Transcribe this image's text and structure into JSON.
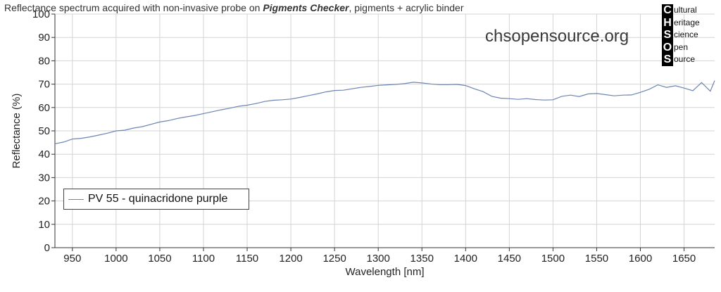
{
  "title": {
    "prefix": "Reflectance spectrum acquired with non-invasive probe on ",
    "emphasis": "Pigments Checker",
    "suffix": ", pigments + acrylic binder"
  },
  "watermark": "chsopensource.org",
  "logo": {
    "rows": [
      {
        "letter": "C",
        "rest": "ultural"
      },
      {
        "letter": "H",
        "rest": "eritage"
      },
      {
        "letter": "S",
        "rest": "cience"
      },
      {
        "letter": "O",
        "rest": "pen"
      },
      {
        "letter": "S",
        "rest": "ource"
      }
    ]
  },
  "legend": {
    "label": "PV 55 - quinacridone purple"
  },
  "colors": {
    "series": "#6d84b4",
    "grid": "#d4d4d4",
    "axis": "#333333"
  },
  "chart_data": {
    "type": "line",
    "title": "Reflectance spectrum acquired with non-invasive probe on Pigments Checker, pigments + acrylic binder",
    "xlabel": "Wavelength [nm]",
    "ylabel": "Reflectance (%)",
    "xlim": [
      930,
      1685
    ],
    "ylim": [
      0,
      100
    ],
    "xticks": [
      950,
      1000,
      1050,
      1100,
      1150,
      1200,
      1250,
      1300,
      1350,
      1400,
      1450,
      1500,
      1550,
      1600,
      1650
    ],
    "yticks": [
      0,
      10,
      20,
      30,
      40,
      50,
      60,
      70,
      80,
      90,
      100
    ],
    "grid": true,
    "legend_position": "bottom-left",
    "series": [
      {
        "name": "PV 55 - quinacridone purple",
        "x": [
          930,
          940,
          950,
          960,
          970,
          980,
          990,
          1000,
          1010,
          1020,
          1030,
          1040,
          1050,
          1060,
          1070,
          1080,
          1090,
          1100,
          1110,
          1120,
          1130,
          1140,
          1150,
          1160,
          1170,
          1180,
          1190,
          1200,
          1210,
          1220,
          1230,
          1240,
          1250,
          1260,
          1270,
          1280,
          1290,
          1300,
          1310,
          1320,
          1330,
          1340,
          1350,
          1360,
          1370,
          1380,
          1390,
          1400,
          1410,
          1420,
          1430,
          1440,
          1450,
          1460,
          1470,
          1480,
          1490,
          1500,
          1510,
          1520,
          1530,
          1540,
          1550,
          1560,
          1570,
          1580,
          1590,
          1600,
          1610,
          1620,
          1630,
          1640,
          1650,
          1660,
          1670,
          1680,
          1685
        ],
        "y": [
          44.5,
          45.2,
          46.5,
          46.8,
          47.4,
          48.2,
          49.0,
          50.0,
          50.3,
          51.2,
          51.8,
          52.8,
          53.8,
          54.4,
          55.3,
          56.0,
          56.6,
          57.4,
          58.2,
          59.0,
          59.7,
          60.5,
          61.0,
          61.7,
          62.6,
          63.1,
          63.3,
          63.6,
          64.3,
          65.1,
          65.8,
          66.7,
          67.3,
          67.4,
          68.0,
          68.6,
          69.0,
          69.5,
          69.7,
          69.9,
          70.2,
          70.8,
          70.5,
          70.1,
          69.8,
          69.8,
          69.9,
          69.4,
          68.0,
          66.8,
          64.8,
          64.0,
          63.8,
          63.5,
          63.8,
          63.4,
          63.2,
          63.3,
          64.8,
          65.3,
          64.7,
          65.8,
          66.0,
          65.5,
          65.0,
          65.3,
          65.4,
          66.5,
          67.8,
          69.7,
          68.6,
          69.3,
          68.3,
          67.2,
          70.7,
          67.0,
          71.5
        ]
      }
    ]
  }
}
